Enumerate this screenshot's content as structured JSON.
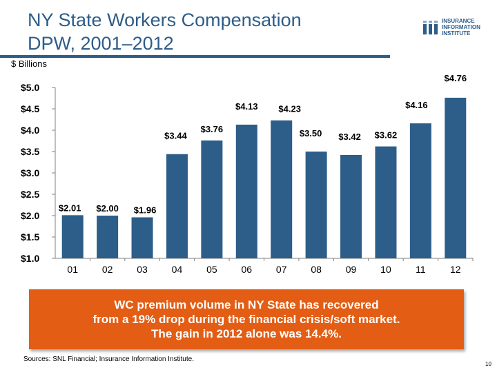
{
  "slide": {
    "title_lines": [
      "NY State Workers Compensation",
      "DPW, 2001–2012"
    ],
    "units_label": "$ Billions",
    "logo": {
      "lines": [
        "INSURANCE",
        "INFORMATION",
        "INSTITUTE"
      ],
      "icon": "iii-logo-icon"
    },
    "callout_lines": [
      "WC premium volume in NY State has recovered",
      "from a 19% drop during the financial crisis/soft market.",
      "The gain in 2012 alone was 14.4%."
    ],
    "source": "Sources: SNL Financial; Insurance Information Institute.",
    "page_number": "10",
    "colors": {
      "title": "#2d5d89",
      "bar": "#2d5d89",
      "callout": "#e35d14",
      "gridline": "#d9d9d9"
    }
  },
  "chart_data": {
    "type": "bar",
    "categories": [
      "01",
      "02",
      "03",
      "04",
      "05",
      "06",
      "07",
      "08",
      "09",
      "10",
      "11",
      "12"
    ],
    "values": [
      2.01,
      2.0,
      1.96,
      3.44,
      3.76,
      4.13,
      4.23,
      3.5,
      3.42,
      3.62,
      4.16,
      4.76
    ],
    "data_labels": [
      "$2.01",
      "$2.00",
      "$1.96",
      "$3.44",
      "$3.76",
      "$4.13",
      "$4.23",
      "$3.50",
      "$3.42",
      "$3.62",
      "$4.16",
      "$4.76"
    ],
    "y_tick_labels": [
      "$1.0",
      "$1.5",
      "$2.0",
      "$2.5",
      "$3.0",
      "$3.5",
      "$4.0",
      "$4.5",
      "$5.0"
    ],
    "y_ticks": [
      1.0,
      1.5,
      2.0,
      2.5,
      3.0,
      3.5,
      4.0,
      4.5,
      5.0
    ],
    "ylim": [
      1.0,
      5.0
    ],
    "xlabel": "",
    "ylabel": "",
    "grid": false,
    "legend": "none"
  }
}
